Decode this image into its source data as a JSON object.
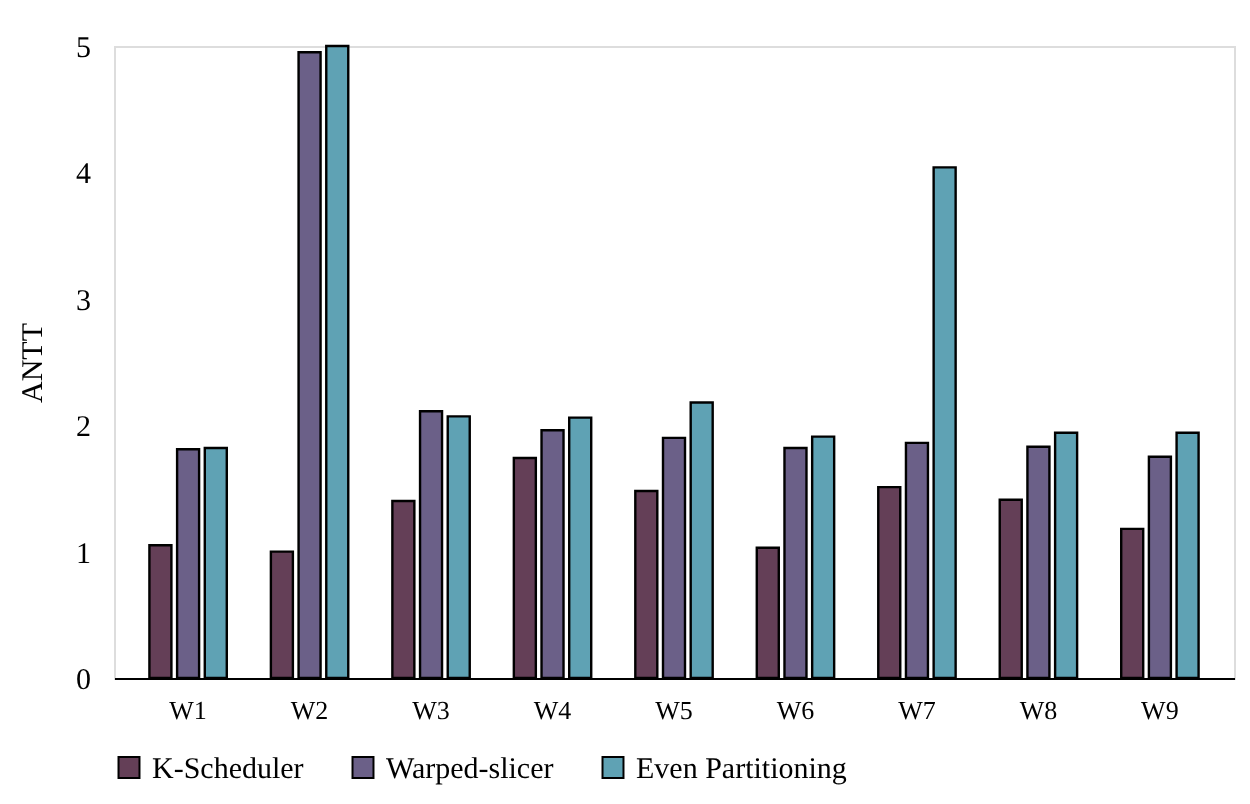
{
  "chart_data": {
    "type": "bar",
    "ylabel": "ANTT",
    "categories": [
      "W1",
      "W2",
      "W3",
      "W4",
      "W5",
      "W6",
      "W7",
      "W8",
      "W9"
    ],
    "series": [
      {
        "name": "K-Scheduler",
        "color": "#643f57",
        "values": [
          1.05,
          1.0,
          1.4,
          1.74,
          1.48,
          1.03,
          1.51,
          1.41,
          1.18
        ]
      },
      {
        "name": "Warped-slicer",
        "color": "#6b6088",
        "values": [
          1.81,
          4.95,
          2.11,
          1.96,
          1.9,
          1.82,
          1.86,
          1.83,
          1.75
        ]
      },
      {
        "name": "Even Partitioning",
        "color": "#5fa2b4",
        "values": [
          1.82,
          5.0,
          2.07,
          2.06,
          2.18,
          1.91,
          4.04,
          1.94,
          1.94
        ]
      }
    ],
    "ylim": [
      0,
      5
    ],
    "yticks": [
      0,
      1,
      2,
      3,
      4,
      5
    ],
    "grid": false,
    "legend": "bottom"
  }
}
